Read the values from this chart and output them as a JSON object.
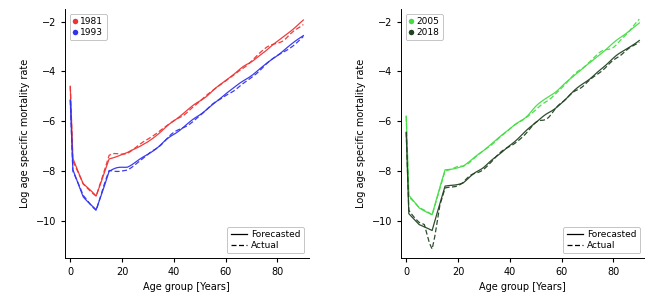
{
  "left_panel": {
    "year_labels": [
      "1981",
      "1993"
    ],
    "year_colors": [
      "#EE3333",
      "#3333EE"
    ],
    "marker_colors": [
      "#EE3333",
      "#3333EE"
    ]
  },
  "right_panel": {
    "year_labels": [
      "2005",
      "2018"
    ],
    "year_colors": [
      "#44DD44",
      "#224422"
    ],
    "marker_colors": [
      "#44DD44",
      "#224422"
    ]
  },
  "line_legend": {
    "forecasted": "Forecasted",
    "actual": "Actual"
  },
  "xlabel": "Age group [Years]",
  "ylabel": "Log age specific mortality rate",
  "ylim": [
    -11.5,
    -1.5
  ],
  "xlim": [
    -2,
    92
  ],
  "yticks": [
    -10,
    -8,
    -6,
    -4,
    -2
  ],
  "xticks": [
    0,
    20,
    40,
    60,
    80
  ],
  "background_color": "#FFFFFF"
}
